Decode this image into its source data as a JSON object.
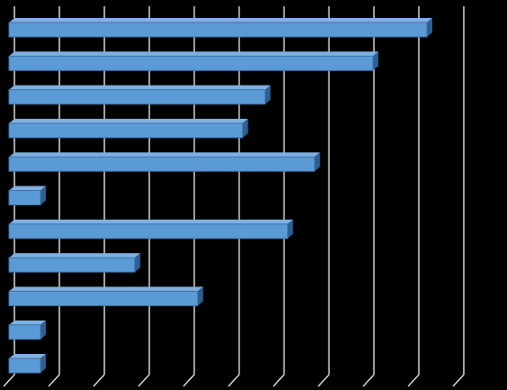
{
  "chart_data": {
    "type": "bar",
    "orientation": "horizontal",
    "style": "3d",
    "title": "",
    "xlabel": "",
    "ylabel": "",
    "grid": true,
    "legend": "none",
    "categories": [
      "",
      "",
      "",
      "",
      "",
      "",
      "",
      "",
      "",
      "",
      ""
    ],
    "values": [
      9.3,
      8.1,
      5.7,
      5.2,
      6.8,
      0.7,
      6.2,
      2.8,
      4.2,
      0.7,
      0.7
    ],
    "xlim": [
      0,
      10
    ]
  },
  "colors": {
    "background": "#000000",
    "gridline": "#d9d9d9",
    "bar_front": "#5b9bd5",
    "bar_top": "#7fb0e0",
    "bar_side": "#2e5f91",
    "bar_edge": "#3c72a8"
  }
}
